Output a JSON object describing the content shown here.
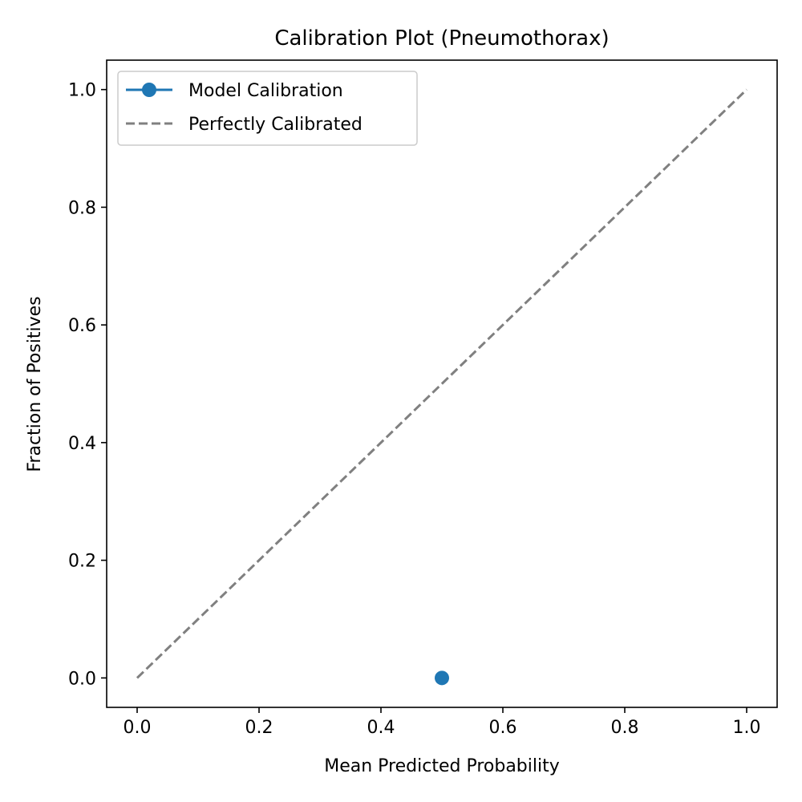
{
  "chart_data": {
    "type": "line",
    "title": "Calibration Plot (Pneumothorax)",
    "xlabel": "Mean Predicted Probability",
    "ylabel": "Fraction of Positives",
    "xlim": [
      -0.05,
      1.05
    ],
    "ylim": [
      -0.05,
      1.05
    ],
    "xticks": [
      "0.0",
      "0.2",
      "0.4",
      "0.6",
      "0.8",
      "1.0"
    ],
    "yticks": [
      "0.0",
      "0.2",
      "0.4",
      "0.6",
      "0.8",
      "1.0"
    ],
    "grid": false,
    "legend_position": "top-left",
    "series": [
      {
        "name": "Model Calibration",
        "color": "#1f77b4",
        "style": "solid",
        "marker": "circle",
        "x": [
          0.5
        ],
        "y": [
          0.0
        ]
      },
      {
        "name": "Perfectly Calibrated",
        "color": "#808080",
        "style": "dashed",
        "marker": "none",
        "x": [
          0.0,
          1.0
        ],
        "y": [
          0.0,
          1.0
        ]
      }
    ]
  }
}
